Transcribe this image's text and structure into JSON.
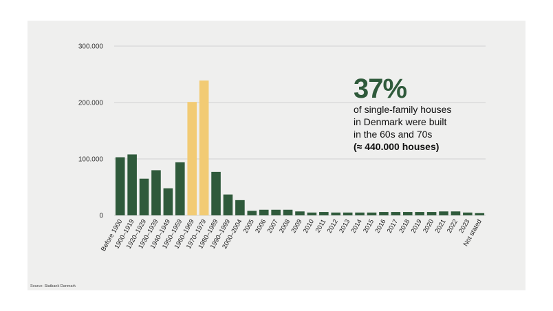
{
  "chart_data": {
    "type": "bar",
    "categories": [
      "Before 1900",
      "1900–1919",
      "1920–1929",
      "1930–1939",
      "1940–1949",
      "1950–1959",
      "1960–1969",
      "1970–1979",
      "1980–1989",
      "1990–1999",
      "2000–2004",
      "2005",
      "2006",
      "2007",
      "2008",
      "2009",
      "2010",
      "2011",
      "2012",
      "2013",
      "2014",
      "2015",
      "2016",
      "2017",
      "2018",
      "2019",
      "2020",
      "2021",
      "2022",
      "2023",
      "Not stated"
    ],
    "values": [
      103000,
      108000,
      65000,
      80000,
      48000,
      94000,
      201000,
      239000,
      77000,
      37000,
      27000,
      8000,
      10000,
      10000,
      10000,
      7000,
      5000,
      6000,
      5000,
      5000,
      5000,
      5000,
      6000,
      6000,
      6000,
      6000,
      6000,
      7000,
      7000,
      5000,
      4000
    ],
    "highlight": [
      "1960–1969",
      "1970–1979"
    ],
    "ylim": [
      0,
      300000
    ],
    "yticks": [
      0,
      100000,
      200000,
      300000
    ],
    "ytick_labels": [
      "0",
      "100.000",
      "200.000",
      "300.000"
    ],
    "grid": true,
    "title": "",
    "xlabel": "",
    "ylabel": ""
  },
  "colors": {
    "bar": "#2f5a3b",
    "highlight": "#f2cb74",
    "grid": "#c8c8c8",
    "panel": "#efefee",
    "stat": "#2f5a3b"
  },
  "annotation": {
    "stat": "37%",
    "lines": [
      "of single-family houses",
      "in Denmark were built",
      "in the 60s and 70s"
    ],
    "bold_line": "(≈ 440.000 houses)"
  },
  "source": "Source: Statbank Danmark"
}
